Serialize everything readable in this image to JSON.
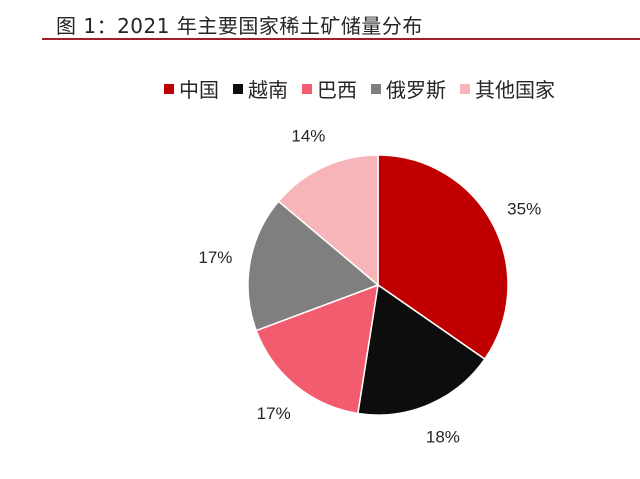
{
  "chart_data": {
    "type": "pie",
    "title": "图 1：2021 年主要国家稀土矿储量分布",
    "categories": [
      "中国",
      "越南",
      "巴西",
      "俄罗斯",
      "其他国家"
    ],
    "values": [
      35,
      18,
      17,
      17,
      14
    ],
    "labels": [
      "35%",
      "18%",
      "17%",
      "17%",
      "14%"
    ],
    "colors": [
      "#c00000",
      "#0d0d0d",
      "#f25c6e",
      "#7f7f7f",
      "#f7b5b9"
    ],
    "legend_position": "top"
  }
}
